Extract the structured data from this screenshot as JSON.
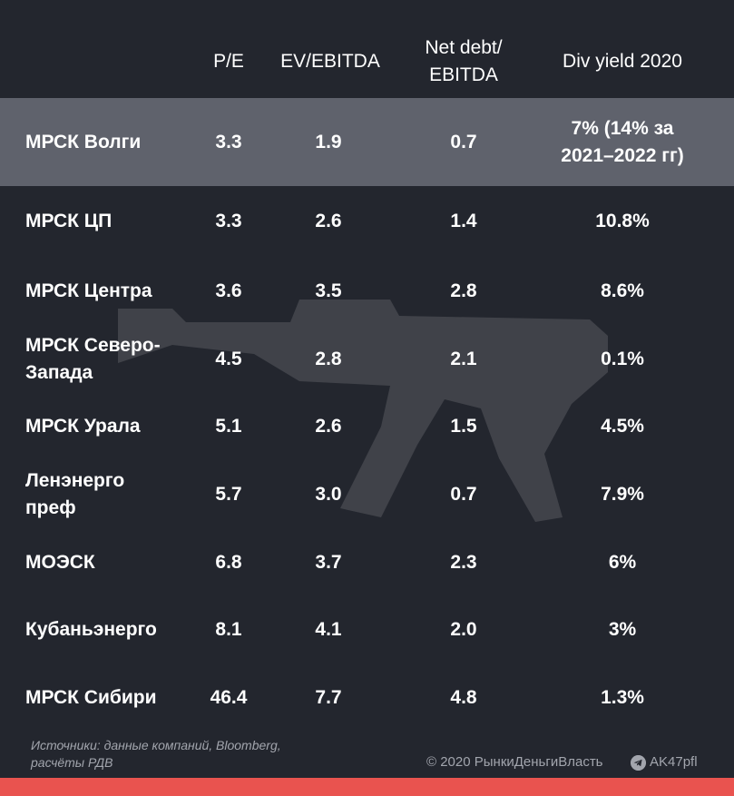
{
  "headers": {
    "pe": "P/E",
    "ev": "EV/EBITDA",
    "nd": "Net debt/\nEBITDA",
    "dy": "Div yield 2020"
  },
  "rows": [
    {
      "name": "МРСК Волги",
      "pe": "3.3",
      "ev": "1.9",
      "nd": "0.7",
      "dy": "7% (14% за\n2021–2022 гг)"
    },
    {
      "name": "МРСК ЦП",
      "pe": "3.3",
      "ev": "2.6",
      "nd": "1.4",
      "dy": "10.8%"
    },
    {
      "name": "МРСК Центра",
      "pe": "3.6",
      "ev": "3.5",
      "nd": "2.8",
      "dy": "8.6%"
    },
    {
      "name": "МРСК Северо-\nЗапада",
      "pe": "4.5",
      "ev": "2.8",
      "nd": "2.1",
      "dy": "0.1%"
    },
    {
      "name": "МРСК Урала",
      "pe": "5.1",
      "ev": "2.6",
      "nd": "1.5",
      "dy": "4.5%"
    },
    {
      "name": "Ленэнерго\nпреф",
      "pe": "5.7",
      "ev": "3.0",
      "nd": "0.7",
      "dy": "7.9%"
    },
    {
      "name": "МОЭСК",
      "pe": "6.8",
      "ev": "3.7",
      "nd": "2.3",
      "dy": "6%"
    },
    {
      "name": "Кубаньэнерго",
      "pe": "8.1",
      "ev": "4.1",
      "nd": "2.0",
      "dy": "3%"
    },
    {
      "name": "МРСК Сибири",
      "pe": "46.4",
      "ev": "7.7",
      "nd": "4.8",
      "dy": "1.3%"
    }
  ],
  "footer": {
    "sources": "Источники: данные компаний, Bloomberg,\nрасчёты РДВ",
    "copyright": "© 2020  РынкиДеньгиВласть",
    "handle": "AK47pfl"
  },
  "colors": {
    "background": "#23262e",
    "highlight": "#5f626c",
    "accent_bar": "#e9534f",
    "footer_text": "#a2a5ad"
  },
  "icons": {
    "watermark": "rifle-icon",
    "telegram": "telegram-icon"
  }
}
